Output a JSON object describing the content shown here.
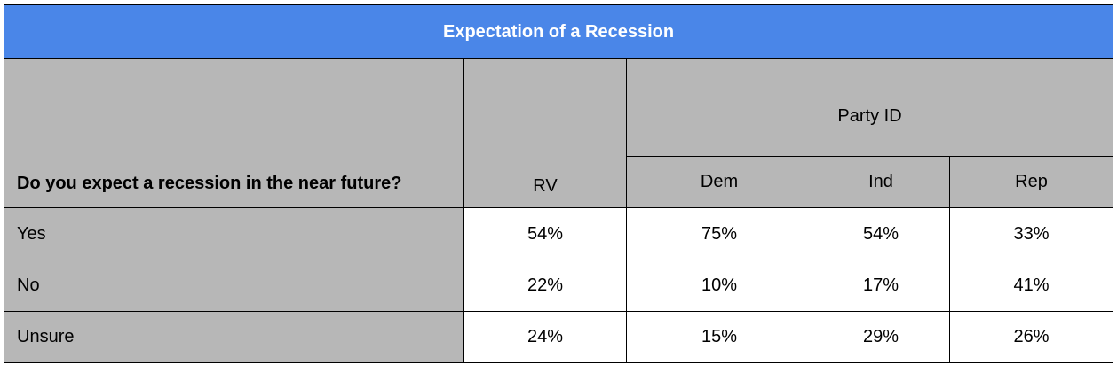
{
  "chart_data": {
    "type": "table",
    "title": "Expectation of a Recession",
    "question": "Do you expect a recession in the near future?",
    "group_label": "Party ID",
    "columns": [
      "RV",
      "Dem",
      "Ind",
      "Rep"
    ],
    "rows": [
      {
        "label": "Yes",
        "values": [
          "54%",
          "75%",
          "54%",
          "33%"
        ]
      },
      {
        "label": "No",
        "values": [
          "22%",
          "10%",
          "17%",
          "41%"
        ]
      },
      {
        "label": "Unsure",
        "values": [
          "24%",
          "15%",
          "29%",
          "26%"
        ]
      }
    ]
  },
  "colors": {
    "title_background": "#4a86e8",
    "header_background": "#b7b7b7",
    "cell_background": "#ffffff"
  }
}
